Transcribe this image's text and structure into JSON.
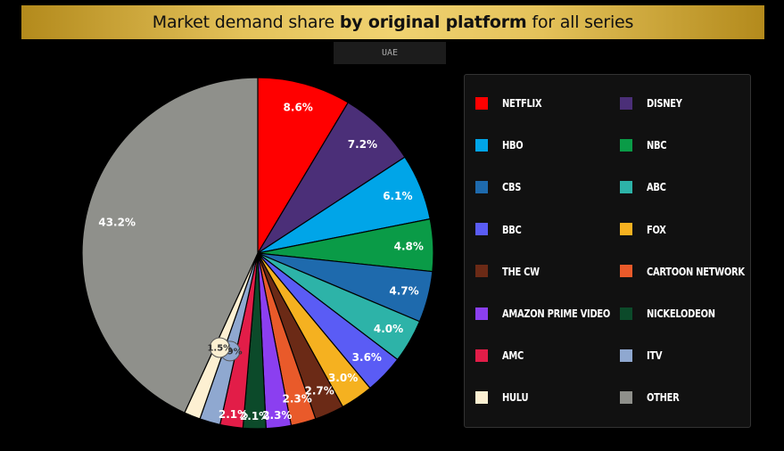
{
  "header": {
    "title_pre": "Market demand share ",
    "title_bold": "by original platform",
    "title_post": " for all series",
    "region": "UAE"
  },
  "chart_data": {
    "type": "pie",
    "title": "Market demand share by original platform for all series",
    "subtitle": "UAE",
    "legend_position": "right",
    "slices": [
      {
        "name": "NETFLIX",
        "value": 8.6,
        "label": "8.6%",
        "color": "#ff0000"
      },
      {
        "name": "DISNEY",
        "value": 7.2,
        "label": "7.2%",
        "color": "#4b2f78"
      },
      {
        "name": "HBO",
        "value": 6.1,
        "label": "6.1%",
        "color": "#00a5e8"
      },
      {
        "name": "NBC",
        "value": 4.8,
        "label": "4.8%",
        "color": "#0a9b47"
      },
      {
        "name": "CBS",
        "value": 4.7,
        "label": "4.7%",
        "color": "#1e6aad"
      },
      {
        "name": "ABC",
        "value": 4.0,
        "label": "4.0%",
        "color": "#2db3a8"
      },
      {
        "name": "BBC",
        "value": 3.6,
        "label": "3.6%",
        "color": "#5a5cf5"
      },
      {
        "name": "FOX",
        "value": 3.0,
        "label": "3.0%",
        "color": "#f5b120"
      },
      {
        "name": "THE CW",
        "value": 2.7,
        "label": "2.7%",
        "color": "#6b2a16"
      },
      {
        "name": "CARTOON NETWORK",
        "value": 2.3,
        "label": "2.3%",
        "color": "#e95a2a"
      },
      {
        "name": "AMAZON PRIME VIDEO",
        "value": 2.3,
        "label": "2.3%",
        "color": "#8b3ff0"
      },
      {
        "name": "NICKELODEON",
        "value": 2.1,
        "label": "2.1%",
        "color": "#0c4a2a"
      },
      {
        "name": "AMC",
        "value": 2.1,
        "label": "2.1%",
        "color": "#e21d48"
      },
      {
        "name": "ITV",
        "value": 1.9,
        "label": "1.9%",
        "color": "#8fa8d0"
      },
      {
        "name": "HULU",
        "value": 1.5,
        "label": "1.5%",
        "color": "#fdf0d2"
      },
      {
        "name": "OTHER",
        "value": 43.2,
        "label": "43.2%",
        "color": "#8f908b"
      }
    ]
  },
  "legend": {
    "columns": [
      [
        "NETFLIX",
        "HBO",
        "CBS",
        "BBC",
        "THE CW",
        "AMAZON PRIME VIDEO",
        "AMC",
        "HULU"
      ],
      [
        "DISNEY",
        "NBC",
        "ABC",
        "FOX",
        "CARTOON NETWORK",
        "NICKELODEON",
        "ITV",
        "OTHER"
      ]
    ]
  }
}
